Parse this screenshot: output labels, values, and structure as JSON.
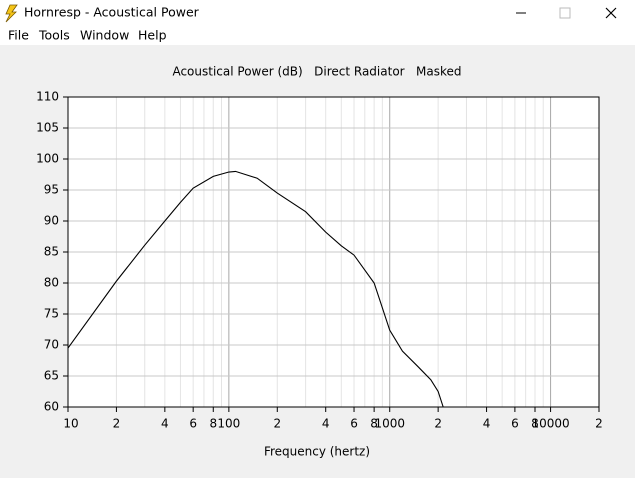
{
  "window": {
    "title": "Hornresp - Acoustical Power",
    "menu": [
      "File",
      "Tools",
      "Window",
      "Help"
    ]
  },
  "chart_data": {
    "type": "line",
    "title": "Acoustical Power (dB)   Direct Radiator   Masked",
    "x_label": "Frequency (hertz)",
    "x": [
      10,
      20,
      30,
      40,
      50,
      60,
      80,
      100,
      110,
      150,
      200,
      300,
      400,
      500,
      600,
      800,
      1000,
      1200,
      1500,
      1800,
      2000,
      2150
    ],
    "values": [
      69.5,
      80.3,
      86.1,
      90,
      93,
      95.3,
      97.2,
      97.9,
      98,
      96.9,
      94.5,
      91.5,
      88.2,
      86,
      84.5,
      80,
      72.4,
      69,
      66.5,
      64.4,
      62.5,
      60
    ],
    "color": "#000000",
    "log_x": true,
    "grid": true,
    "xlim": [
      10,
      20000
    ],
    "ylim": [
      60,
      110
    ],
    "xticks": [
      10,
      {
        "value": 20,
        "label": "2"
      },
      {
        "value": 40,
        "label": "4"
      },
      {
        "value": 60,
        "label": "6"
      },
      {
        "value": 80,
        "label": "8"
      },
      100,
      {
        "value": 200,
        "label": "2"
      },
      {
        "value": 400,
        "label": "4"
      },
      {
        "value": 600,
        "label": "6"
      },
      {
        "value": 800,
        "label": "8"
      },
      1000,
      {
        "value": 2000,
        "label": "2"
      },
      {
        "value": 4000,
        "label": "4"
      },
      {
        "value": 6000,
        "label": "6"
      },
      {
        "value": 8000,
        "label": "8"
      },
      10000,
      {
        "value": 20000,
        "label": "2"
      }
    ],
    "x_minor_ticks": [
      30,
      50,
      70,
      90,
      300,
      500,
      700,
      900,
      3000,
      5000,
      7000,
      9000
    ],
    "yticks": [
      60,
      65,
      70,
      75,
      80,
      85,
      90,
      95,
      100,
      105,
      110
    ]
  }
}
